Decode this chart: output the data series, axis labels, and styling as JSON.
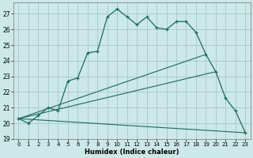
{
  "xlabel": "Humidex (Indice chaleur)",
  "bg_color": "#cce8e8",
  "grid_color": "#aacccc",
  "line_color": "#1a6b5a",
  "xlim": [
    -0.5,
    23.5
  ],
  "ylim": [
    19.0,
    27.7
  ],
  "yticks": [
    19,
    20,
    21,
    22,
    23,
    24,
    25,
    26,
    27
  ],
  "xticks": [
    0,
    1,
    2,
    3,
    4,
    5,
    6,
    7,
    8,
    9,
    10,
    11,
    12,
    13,
    14,
    15,
    16,
    17,
    18,
    19,
    20,
    21,
    22,
    23
  ],
  "series1_x": [
    0,
    1,
    2,
    3,
    4,
    5,
    6,
    7,
    8,
    9,
    10,
    11,
    12,
    13,
    14,
    15,
    16,
    17,
    18,
    19,
    20,
    21,
    22,
    23
  ],
  "series1_y": [
    20.3,
    20.0,
    20.5,
    21.0,
    20.8,
    22.7,
    22.9,
    24.5,
    24.6,
    26.8,
    27.3,
    26.8,
    26.3,
    26.8,
    26.1,
    26.0,
    26.5,
    26.5,
    25.8,
    24.4,
    23.3,
    21.6,
    20.8,
    19.4
  ],
  "series2_x": [
    0,
    19
  ],
  "series2_y": [
    20.3,
    24.4
  ],
  "series3_x": [
    0,
    23
  ],
  "series3_y": [
    20.3,
    19.4
  ],
  "series4_x": [
    0,
    20
  ],
  "series4_y": [
    20.3,
    23.3
  ]
}
